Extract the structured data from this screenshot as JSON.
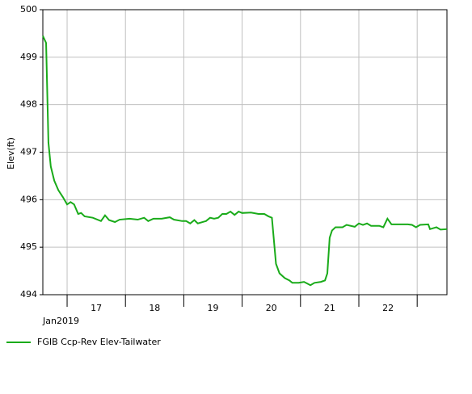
{
  "chart_data": {
    "type": "line",
    "y_axis_label": "Elev(ft)",
    "x_axis_sublabel": "Jan2019",
    "day_labels": [
      "17",
      "18",
      "19",
      "20",
      "21",
      "22"
    ],
    "xlim": [
      16.584,
      23.51
    ],
    "xticks": [
      17,
      18,
      19,
      20,
      21,
      22,
      23
    ],
    "ylim": [
      494,
      500
    ],
    "yticks": [
      494,
      495,
      496,
      497,
      498,
      499,
      500
    ],
    "grid": true,
    "legend": "bottom-left",
    "series": [
      {
        "name": "FGIB Ccp-Rev Elev-Tailwater",
        "color": "#1aab1a",
        "x": [
          16.584,
          16.64,
          16.68,
          16.72,
          16.78,
          16.85,
          16.93,
          17.0,
          17.06,
          17.12,
          17.19,
          17.24,
          17.3,
          17.44,
          17.58,
          17.65,
          17.72,
          17.82,
          17.9,
          18.07,
          18.21,
          18.32,
          18.39,
          18.48,
          18.62,
          18.76,
          18.83,
          18.97,
          19.04,
          19.11,
          19.18,
          19.24,
          19.38,
          19.45,
          19.52,
          19.59,
          19.66,
          19.73,
          19.8,
          19.87,
          19.94,
          20.0,
          20.15,
          20.28,
          20.38,
          20.45,
          20.51,
          20.58,
          20.64,
          20.73,
          20.81,
          20.86,
          20.97,
          21.06,
          21.17,
          21.24,
          21.35,
          21.42,
          21.46,
          21.5,
          21.54,
          21.6,
          21.72,
          21.79,
          21.93,
          22.0,
          22.07,
          22.14,
          22.21,
          22.35,
          22.42,
          22.49,
          22.56,
          22.7,
          22.84,
          22.91,
          22.98,
          23.05,
          23.19,
          23.22,
          23.33,
          23.4,
          23.51
        ],
        "values": [
          499.45,
          499.3,
          497.2,
          496.7,
          496.4,
          496.2,
          496.05,
          495.9,
          495.95,
          495.9,
          495.7,
          495.72,
          495.65,
          495.62,
          495.55,
          495.67,
          495.57,
          495.53,
          495.58,
          495.6,
          495.58,
          495.62,
          495.55,
          495.6,
          495.6,
          495.63,
          495.58,
          495.55,
          495.55,
          495.5,
          495.57,
          495.5,
          495.55,
          495.62,
          495.6,
          495.62,
          495.7,
          495.7,
          495.75,
          495.68,
          495.75,
          495.72,
          495.73,
          495.7,
          495.7,
          495.65,
          495.62,
          494.65,
          494.45,
          494.35,
          494.3,
          494.25,
          494.25,
          494.27,
          494.2,
          494.25,
          494.27,
          494.3,
          494.45,
          495.2,
          495.35,
          495.42,
          495.42,
          495.47,
          495.43,
          495.5,
          495.47,
          495.5,
          495.45,
          495.45,
          495.42,
          495.6,
          495.48,
          495.48,
          495.48,
          495.47,
          495.42,
          495.47,
          495.48,
          495.38,
          495.42,
          495.37,
          495.38
        ]
      }
    ]
  }
}
